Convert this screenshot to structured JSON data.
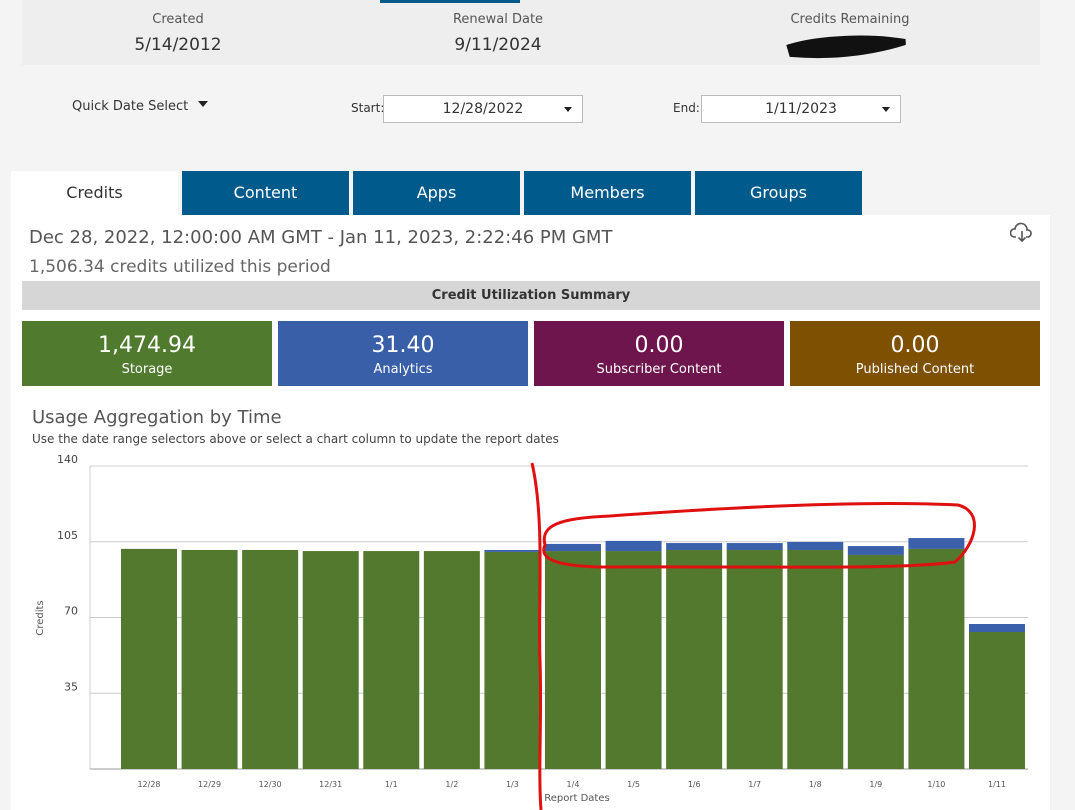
{
  "summary": {
    "created_label": "Created",
    "created": "5/14/2012",
    "renewal_label": "Renewal Date",
    "renewal": "9/11/2024",
    "credits_label": "Credits Remaining"
  },
  "filters": {
    "quick": "Quick Date Select",
    "start_label": "Start:",
    "start": "12/28/2022",
    "end_label": "End:",
    "end": "1/11/2023"
  },
  "tabs": [
    "Credits",
    "Content",
    "Apps",
    "Members",
    "Groups"
  ],
  "period": "Dec 28, 2022, 12:00:00 AM GMT - Jan 11, 2023, 2:22:46 PM GMT",
  "utilized": "1,506.34 credits utilized this period",
  "summary_title": "Credit Utilization Summary",
  "tiles": [
    {
      "value": "1,474.94",
      "label": "Storage",
      "color": "#507a2e"
    },
    {
      "value": "31.40",
      "label": "Analytics",
      "color": "#3a5fa9"
    },
    {
      "value": "0.00",
      "label": "Subscriber Content",
      "color": "#6e154d"
    },
    {
      "value": "0.00",
      "label": "Published Content",
      "color": "#7e5002"
    }
  ],
  "chart_data": {
    "type": "stacked_bar",
    "title": "Usage Aggregation by Time",
    "subtitle": "Use the date range selectors above or select a chart column to update the report dates",
    "x_label": "Report Dates",
    "y_label": "Credits",
    "categories": [
      "12/28",
      "12/29",
      "12/30",
      "12/31",
      "1/1",
      "1/2",
      "1/3",
      "1/4",
      "1/5",
      "1/6",
      "1/7",
      "1/8",
      "1/9",
      "1/10",
      "1/11"
    ],
    "series": [
      {
        "color": "#52792e",
        "values": [
          101.7,
          101.2,
          101.2,
          100.7,
          100.7,
          100.7,
          100.3,
          100.7,
          100.7,
          101.2,
          101.2,
          101.2,
          98.9,
          101.7,
          63.3
        ]
      },
      {
        "color": "#3a5fab",
        "values": [
          0,
          0,
          0,
          0,
          0,
          0,
          0.9,
          3.3,
          4.7,
          3.2,
          3.2,
          3.7,
          4.1,
          5.0,
          3.7
        ]
      }
    ],
    "ylim": [
      0,
      140
    ],
    "yticks": [
      35,
      70,
      105,
      140
    ],
    "grid": true
  }
}
